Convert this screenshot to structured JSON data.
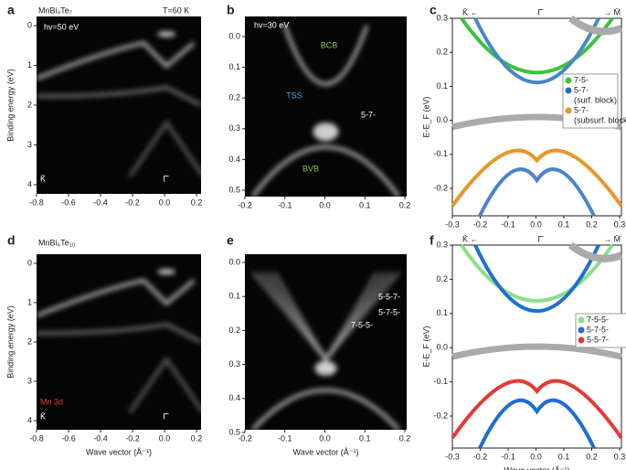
{
  "panels": [
    {
      "label": "a",
      "title": "MnBi₄Te₇",
      "annotations": [
        "hv=50 eV",
        "T=60 K",
        "K̄",
        "Γ̄"
      ],
      "xticks": [
        "-0.8",
        "-0.6",
        "-0.4",
        "-0.2",
        "0.0",
        "0.2"
      ],
      "yticks": [
        "0",
        "1",
        "2",
        "3",
        "4"
      ],
      "ylabel": "Binding energy (eV)"
    },
    {
      "label": "b",
      "annotations": [
        "hv=30 eV",
        "BCB",
        "TSS",
        "5-7-",
        "BVB"
      ],
      "xticks": [
        "-0.2",
        "-0.1",
        "0.0",
        "0.1",
        "0.2"
      ],
      "yticks": [
        "0.0",
        "0.1",
        "0.2",
        "0.3",
        "0.4",
        "0.5"
      ]
    },
    {
      "label": "c",
      "annotations": [
        "K̄ ←",
        "Γ̄",
        "→ M̄"
      ],
      "xticks": [
        "-0.3",
        "-0.2",
        "-0.1",
        "0.0",
        "0.1",
        "0.2",
        "0.3"
      ],
      "yticks": [
        "0.3",
        "0.2",
        "0.1",
        "0.0",
        "-0.1",
        "-0.2"
      ],
      "ylabel": "E-E_F (eV)",
      "legend": [
        "7-5-",
        "5-7-",
        "(surf. block)",
        "5-7-",
        "(subsurf. block)"
      ]
    },
    {
      "label": "d",
      "title": "MnBi₆Te₁₀",
      "annotations": [
        "Mn 3d",
        "K̄",
        "Γ̄"
      ],
      "xticks": [
        "-0.8",
        "-0.6",
        "-0.4",
        "-0.2",
        "0.0",
        "0.2"
      ],
      "yticks": [
        "0",
        "1",
        "2",
        "3",
        "4"
      ],
      "ylabel": "Binding energy (eV)",
      "xlabel": "Wave vector (Å⁻¹)"
    },
    {
      "label": "e",
      "annotations": [
        "5-5-7-",
        "5-7-5-",
        "7-5-5-"
      ],
      "xticks": [
        "-0.2",
        "-0.1",
        "0.0",
        "0.1",
        "0.2"
      ],
      "yticks": [
        "0.0",
        "0.1",
        "0.2",
        "0.3",
        "0.4",
        "0.5"
      ],
      "xlabel": "Wave vector (Å⁻¹)"
    },
    {
      "label": "f",
      "annotations": [
        "K̄ ←",
        "Γ̄",
        "→ M̄"
      ],
      "xticks": [
        "-0.3",
        "-0.2",
        "-0.1",
        "0.0",
        "0.1",
        "0.2",
        "0.3"
      ],
      "yticks": [
        "0.3",
        "0.2",
        "0.1",
        "0.0",
        "-0.1",
        "-0.2"
      ],
      "ylabel": "E-E_F (eV)",
      "legend": [
        "7-5-5-",
        "5-7-5-",
        "5-5-7-"
      ],
      "xlabel": "Wave vector (Å⁻¹)"
    }
  ]
}
